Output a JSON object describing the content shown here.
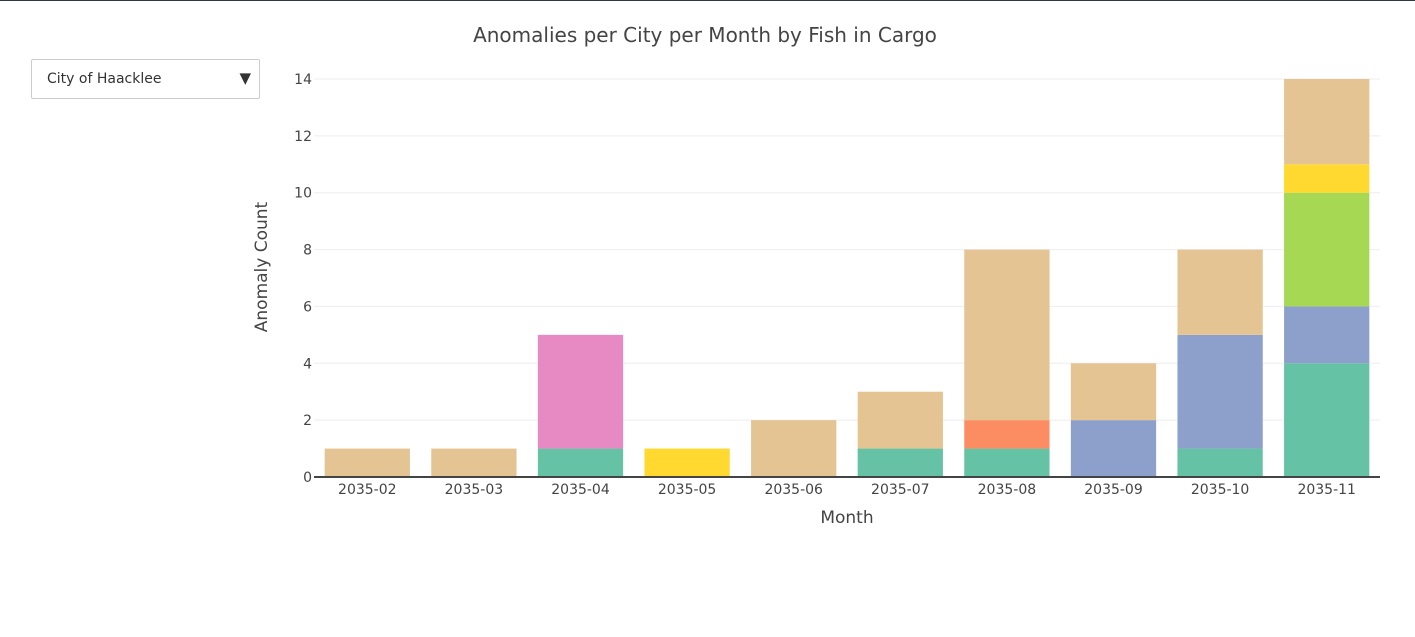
{
  "controls": {
    "city_select": {
      "selected": "City of Haacklee",
      "caret": "▼"
    }
  },
  "chart_data": {
    "type": "bar",
    "barmode": "stack",
    "title": "Anomalies per City per Month by Fish in Cargo",
    "xlabel": "Month",
    "ylabel": "Anomaly Count",
    "ylim": [
      0,
      14
    ],
    "yticks": [
      0,
      2,
      4,
      6,
      8,
      10,
      12,
      14
    ],
    "grid": true,
    "legend": "none",
    "categories": [
      "2035-02",
      "2035-03",
      "2035-04",
      "2035-05",
      "2035-06",
      "2035-07",
      "2035-08",
      "2035-09",
      "2035-10",
      "2035-11"
    ],
    "series": [
      {
        "color": "#66c2a5",
        "values": [
          0,
          0,
          1,
          0,
          0,
          1,
          1,
          0,
          1,
          4
        ]
      },
      {
        "color": "#fc8d62",
        "values": [
          0,
          0,
          0,
          0,
          0,
          0,
          1,
          0,
          0,
          0
        ]
      },
      {
        "color": "#8da0cb",
        "values": [
          0,
          0,
          0,
          0,
          0,
          0,
          0,
          2,
          4,
          2
        ]
      },
      {
        "color": "#e78ac3",
        "values": [
          0,
          0,
          4,
          0,
          0,
          0,
          0,
          0,
          0,
          0
        ]
      },
      {
        "color": "#a6d854",
        "values": [
          0,
          0,
          0,
          0,
          0,
          0,
          0,
          0,
          0,
          4
        ]
      },
      {
        "color": "#ffd92f",
        "values": [
          0,
          0,
          0,
          1,
          0,
          0,
          0,
          0,
          0,
          1
        ]
      },
      {
        "color": "#e5c494",
        "values": [
          1,
          1,
          0,
          0,
          2,
          2,
          6,
          2,
          3,
          3
        ]
      }
    ]
  }
}
